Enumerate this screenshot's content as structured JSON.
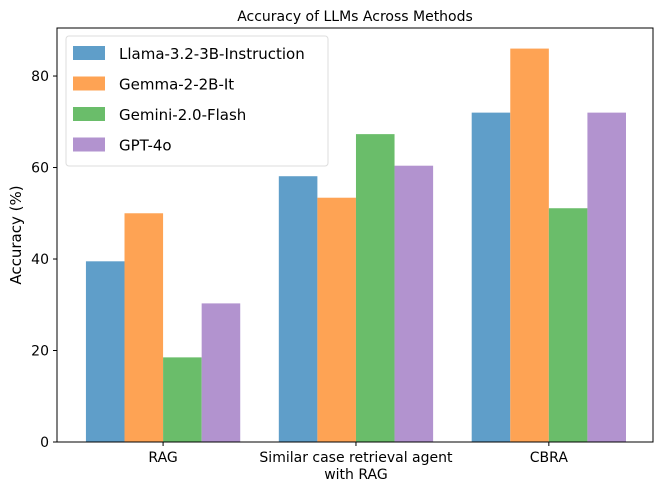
{
  "chart_data": {
    "type": "bar",
    "title": "Accuracy of LLMs Across Methods",
    "xlabel": "",
    "ylabel": "Accuracy (%)",
    "categories": [
      "RAG",
      "Similar case retrieval agent\nwith RAG",
      "CBRA"
    ],
    "category_lines": [
      [
        "RAG"
      ],
      [
        "Similar case retrieval agent",
        "with RAG"
      ],
      [
        "CBRA"
      ]
    ],
    "ylim": [
      0,
      90.5
    ],
    "yticks": [
      0,
      20,
      40,
      60,
      80
    ],
    "grid": false,
    "legend_position": "top-left",
    "series": [
      {
        "name": "Llama-3.2-3B-Instruction",
        "color": "#5f9ec9",
        "values": [
          39.5,
          58.1,
          72.0
        ]
      },
      {
        "name": "Gemma-2-2B-It",
        "color": "#fea354",
        "values": [
          50.0,
          53.4,
          86.0
        ]
      },
      {
        "name": "Gemini-2.0-Flash",
        "color": "#6abd6a",
        "values": [
          18.5,
          67.3,
          51.1
        ]
      },
      {
        "name": "GPT-4o",
        "color": "#b293cf",
        "values": [
          30.3,
          60.4,
          72.0
        ]
      }
    ]
  }
}
